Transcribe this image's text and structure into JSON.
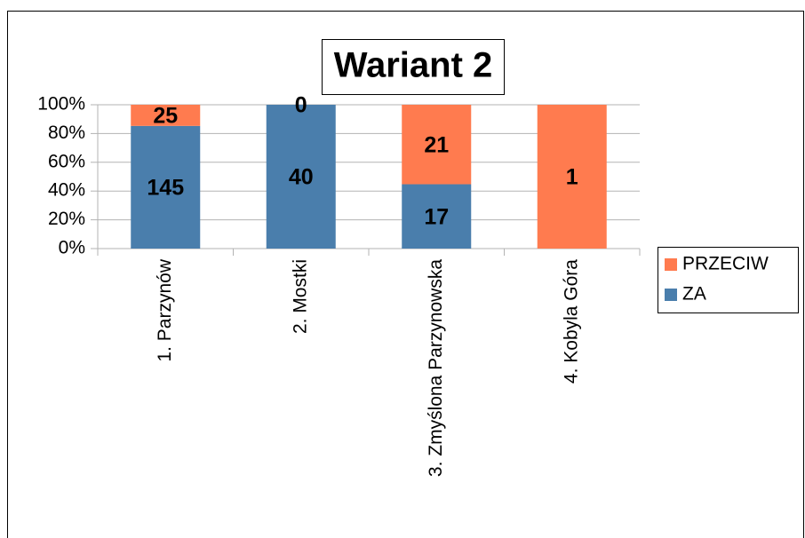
{
  "chart_data": {
    "type": "stacked_percent_bar",
    "title": "Wariant 2",
    "categories": [
      "1. Parzynów",
      "2. Mostki",
      "3. Zmyślona Parzynowska",
      "4. Kobyla Góra"
    ],
    "series": [
      {
        "name": "ZA",
        "color": "#4a7eac",
        "values": [
          145,
          40,
          17,
          0
        ]
      },
      {
        "name": "PRZECIW",
        "color": "#ff7b4f",
        "values": [
          25,
          0,
          21,
          1
        ]
      }
    ],
    "ylim": [
      0,
      100
    ],
    "yticks": [
      {
        "value": 0,
        "label": "0%"
      },
      {
        "value": 20,
        "label": "20%"
      },
      {
        "value": 40,
        "label": "40%"
      },
      {
        "value": 60,
        "label": "60%"
      },
      {
        "value": 80,
        "label": "80%"
      },
      {
        "value": 100,
        "label": "100%"
      }
    ],
    "grid": true,
    "legend": "right"
  }
}
